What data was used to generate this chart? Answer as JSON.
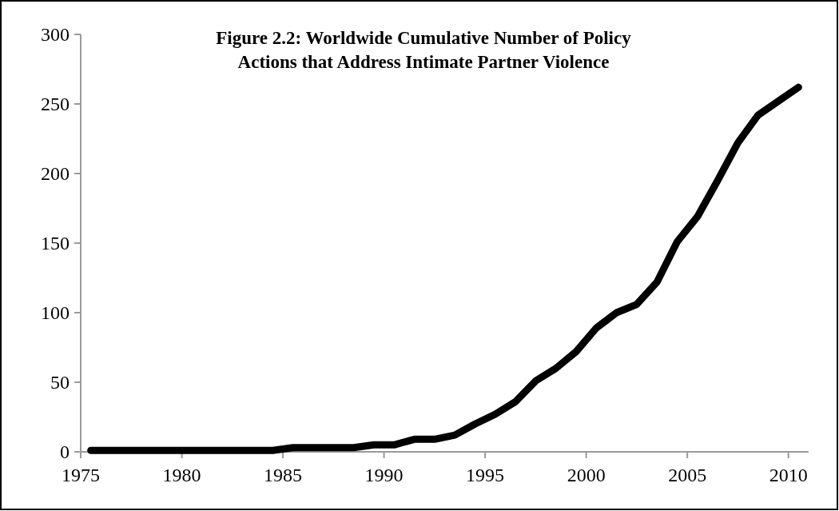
{
  "chart_data": {
    "type": "line",
    "title": "Figure 2.2: Worldwide Cumulative Number of Policy\nActions that Address Intimate Partner Violence",
    "x": [
      1975.5,
      1976.5,
      1977.5,
      1978.5,
      1979.5,
      1980.5,
      1981.5,
      1982.5,
      1983.5,
      1984.5,
      1985.5,
      1986.5,
      1987.5,
      1988.5,
      1989.5,
      1990.5,
      1991.5,
      1992.5,
      1993.5,
      1994.5,
      1995.5,
      1996.5,
      1997.5,
      1998.5,
      1999.5,
      2000.5,
      2001.5,
      2002.5,
      2003.5,
      2004.5,
      2005.5,
      2006.5,
      2007.5,
      2008.5,
      2009.5,
      2010.5
    ],
    "series": [
      {
        "color": "#000000",
        "values": [
          1,
          1,
          1,
          1,
          1,
          1,
          1,
          1,
          1,
          1,
          3,
          3,
          3,
          3,
          5,
          5,
          9,
          9,
          12,
          20,
          27,
          36,
          51,
          60,
          72,
          89,
          100,
          106,
          122,
          151,
          169,
          195,
          222,
          242,
          252,
          262
        ]
      }
    ],
    "xlim": [
      1975,
      2011
    ],
    "xticks": [
      1975,
      1980,
      1985,
      1990,
      1995,
      2000,
      2005,
      2010
    ],
    "ylim": [
      0,
      300
    ],
    "yticks": [
      0,
      50,
      100,
      150,
      200,
      250,
      300
    ],
    "marker": "none",
    "line_style": "solid"
  }
}
